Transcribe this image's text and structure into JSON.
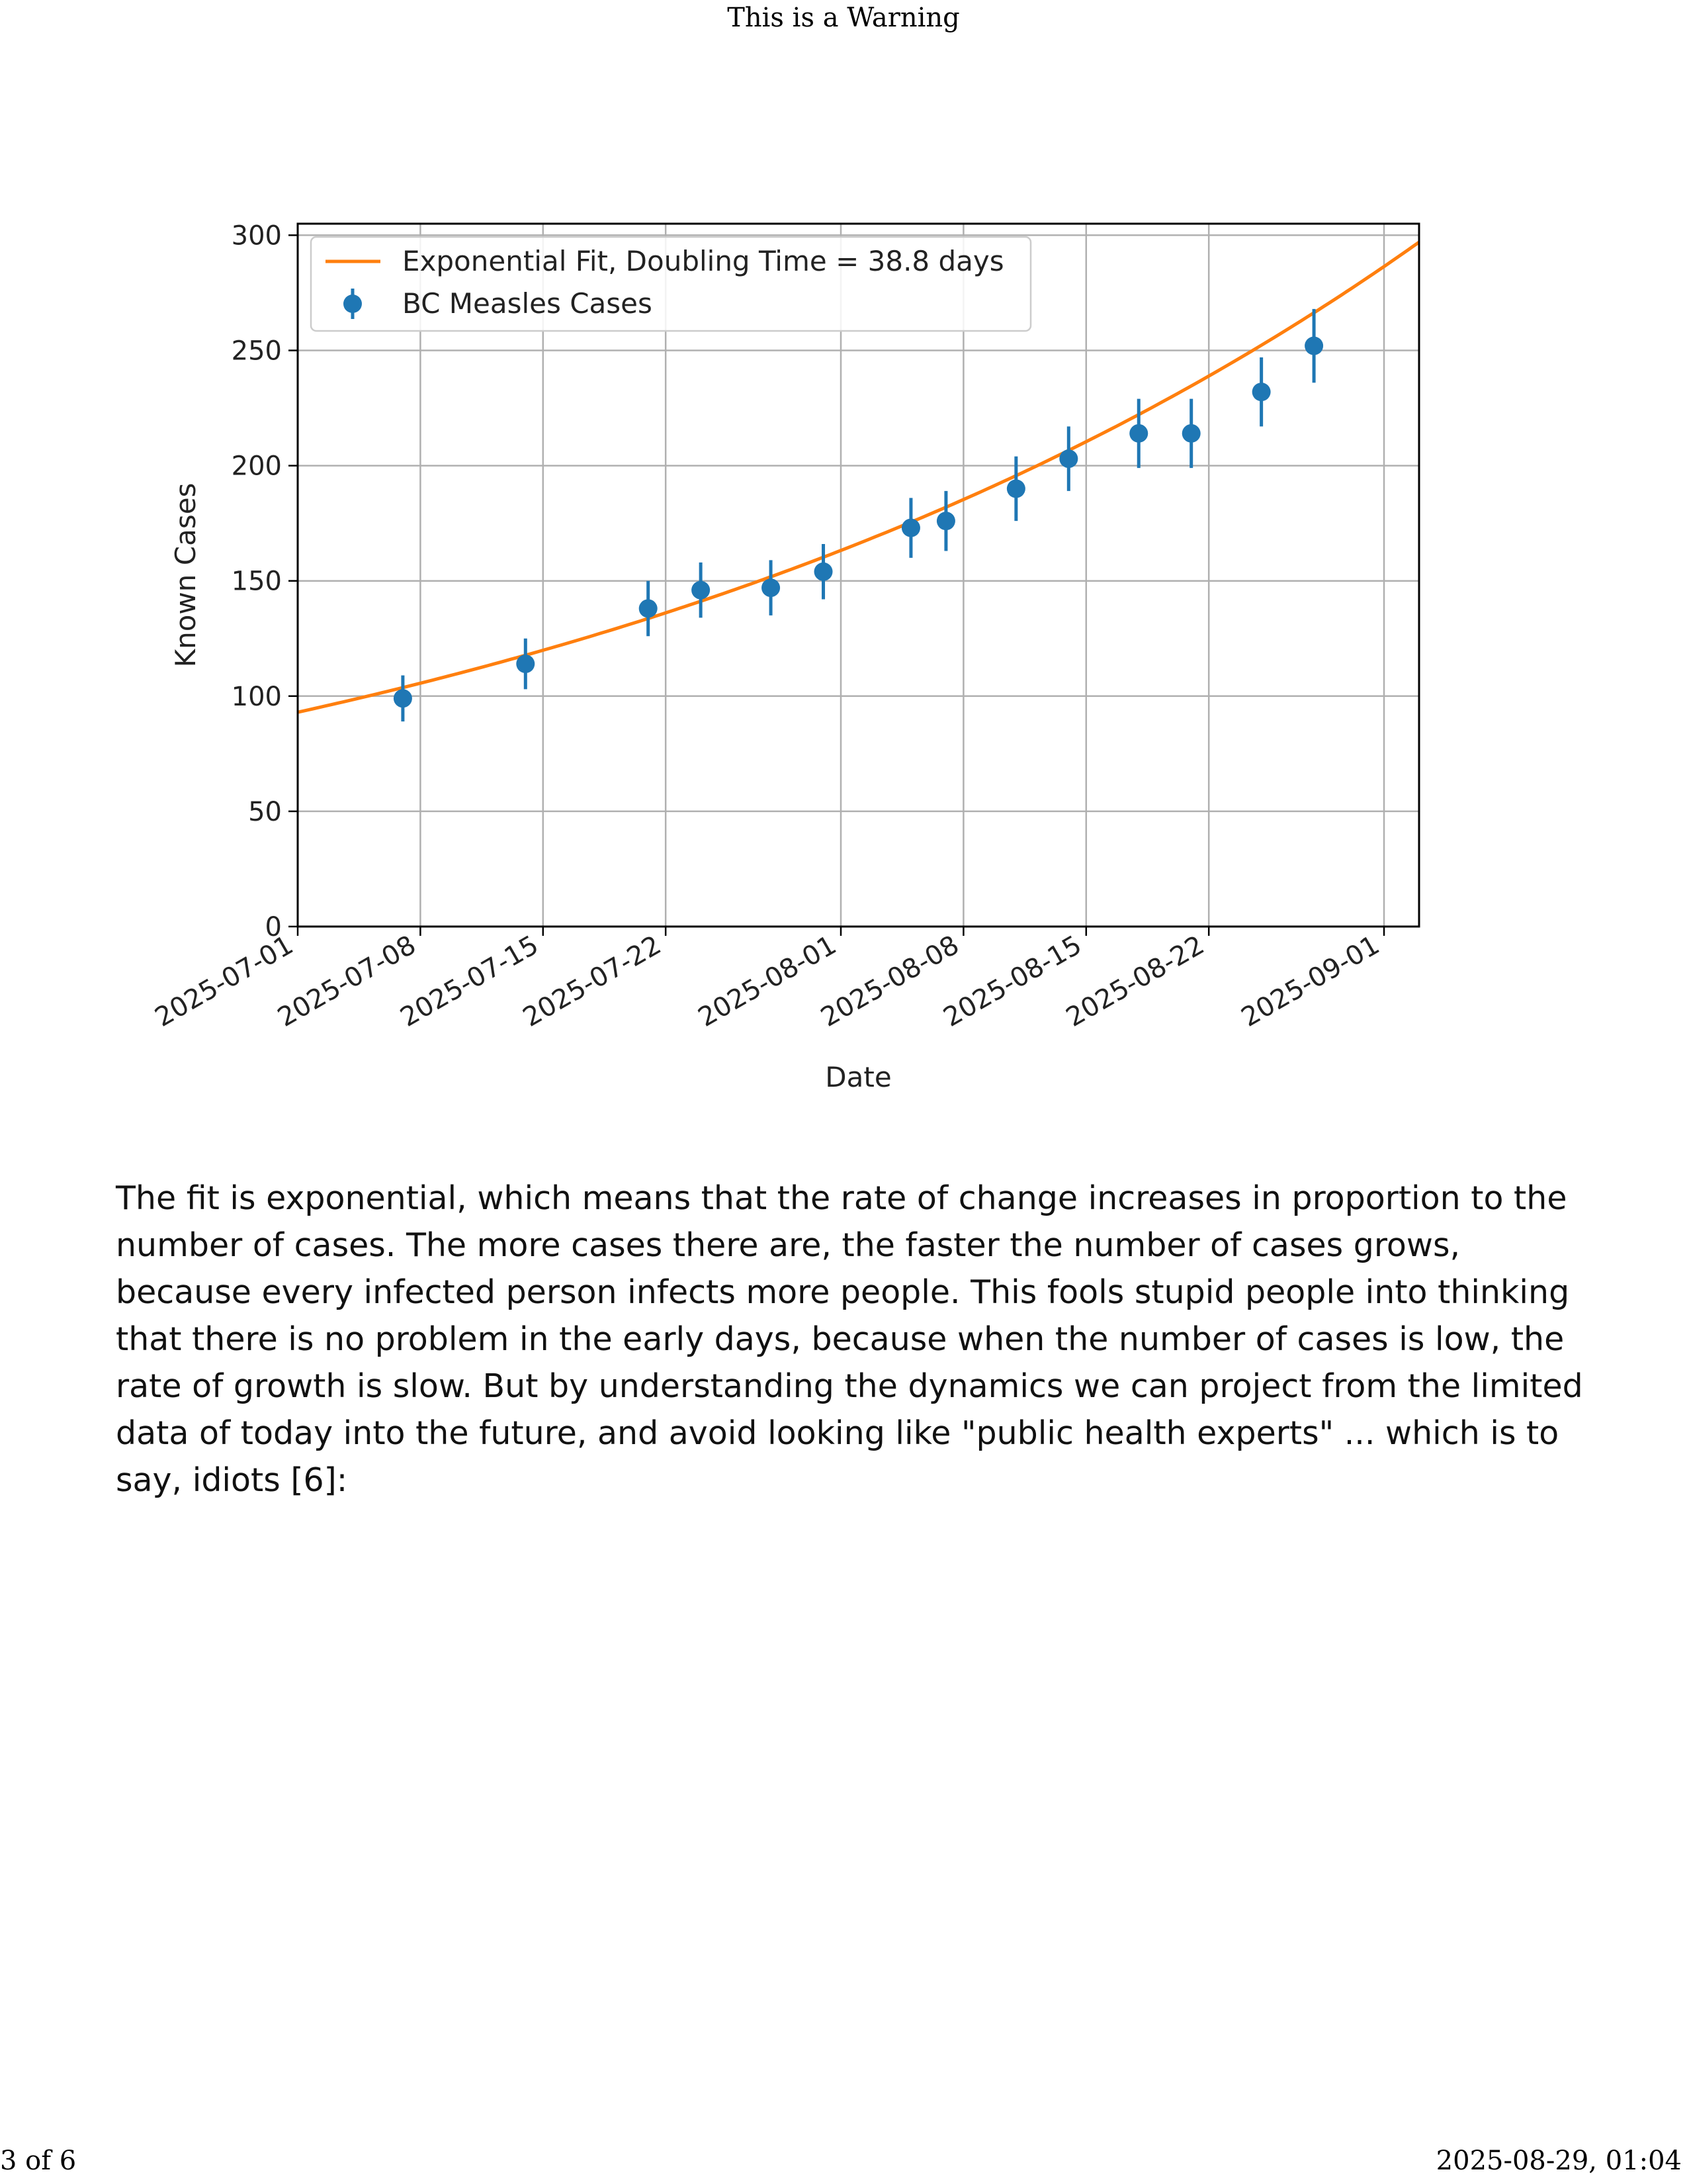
{
  "header": {
    "title": "This is a Warning"
  },
  "paragraph": "The fit is exponential, which means that the rate of change increases in proportion to the number of cases. The more cases there are, the faster the number of cases grows, because every infected person infects more people. This fools stupid people into thinking that there is no problem in the early days, because when the number of cases is low, the rate of growth is slow. But by understanding the dynamics we can project from the limited data of today into the future, and avoid looking like \"public health experts\" ... which is to say, idiots [6]:",
  "footer": {
    "page": "3 of 6",
    "datetime": "2025-08-29, 01:04"
  },
  "chart_data": {
    "type": "line",
    "xlabel": "Date",
    "ylabel": "Known Cases",
    "xlim": [
      "2025-07-01",
      "2025-09-03"
    ],
    "ylim": [
      0,
      305
    ],
    "grid": true,
    "legend_position": "top-left",
    "xticks": [
      "2025-07-01",
      "2025-07-08",
      "2025-07-15",
      "2025-07-22",
      "2025-08-01",
      "2025-08-08",
      "2025-08-15",
      "2025-08-22",
      "2025-09-01"
    ],
    "yticks": [
      0,
      50,
      100,
      150,
      200,
      250,
      300
    ],
    "colors": {
      "fit": "#ff7f0e",
      "points": "#1f77b4"
    },
    "series": [
      {
        "name": "Exponential Fit, Doubling Time = 38.8 days",
        "kind": "line",
        "start": {
          "date": "2025-07-01",
          "value": 93
        },
        "end": {
          "date": "2025-09-03",
          "value": 297
        }
      },
      {
        "name": "BC Measles Cases",
        "kind": "errorbar",
        "points": [
          {
            "date": "2025-07-07",
            "y": 99,
            "err": 10
          },
          {
            "date": "2025-07-14",
            "y": 114,
            "err": 11
          },
          {
            "date": "2025-07-21",
            "y": 138,
            "err": 12
          },
          {
            "date": "2025-07-24",
            "y": 146,
            "err": 12
          },
          {
            "date": "2025-07-28",
            "y": 147,
            "err": 12
          },
          {
            "date": "2025-07-31",
            "y": 154,
            "err": 12
          },
          {
            "date": "2025-08-05",
            "y": 173,
            "err": 13
          },
          {
            "date": "2025-08-07",
            "y": 176,
            "err": 13
          },
          {
            "date": "2025-08-11",
            "y": 190,
            "err": 14
          },
          {
            "date": "2025-08-14",
            "y": 203,
            "err": 14
          },
          {
            "date": "2025-08-18",
            "y": 214,
            "err": 15
          },
          {
            "date": "2025-08-21",
            "y": 214,
            "err": 15
          },
          {
            "date": "2025-08-25",
            "y": 232,
            "err": 15
          },
          {
            "date": "2025-08-28",
            "y": 252,
            "err": 16
          }
        ]
      }
    ]
  }
}
